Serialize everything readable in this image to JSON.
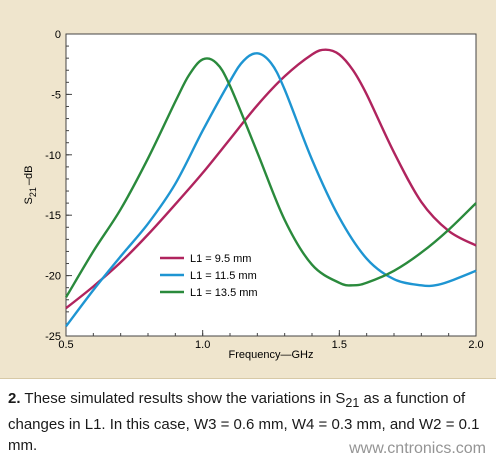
{
  "chart_data": {
    "type": "line",
    "xlabel": "Frequency—GHz",
    "ylabel_main": "S",
    "ylabel_sub": "21",
    "ylabel_unit": "–dB",
    "xlim": [
      0.5,
      2.0
    ],
    "ylim": [
      -25,
      0
    ],
    "x_ticks": [
      "0.5",
      "1.0",
      "1.5",
      "2.0"
    ],
    "y_ticks": [
      "0",
      "-5",
      "-10",
      "-15",
      "-20",
      "-25"
    ],
    "legend_position": "lower-center",
    "series": [
      {
        "name": "L1 = 9.5 mm",
        "color": "#b0245e",
        "x": [
          0.5,
          0.6,
          0.7,
          0.8,
          0.9,
          1.0,
          1.1,
          1.2,
          1.3,
          1.4,
          1.45,
          1.5,
          1.55,
          1.6,
          1.7,
          1.8,
          1.9,
          2.0
        ],
        "y": [
          -22.7,
          -20.9,
          -18.9,
          -16.6,
          -14.1,
          -11.5,
          -8.7,
          -5.9,
          -3.5,
          -1.7,
          -1.3,
          -1.7,
          -3.0,
          -5.0,
          -9.8,
          -13.9,
          -16.3,
          -17.5
        ]
      },
      {
        "name": "L1 = 11.5 mm",
        "color": "#1e95d2",
        "x": [
          0.5,
          0.6,
          0.7,
          0.8,
          0.9,
          1.0,
          1.1,
          1.15,
          1.2,
          1.25,
          1.3,
          1.4,
          1.5,
          1.6,
          1.7,
          1.8,
          1.85,
          1.9,
          2.0
        ],
        "y": [
          -24.2,
          -21.2,
          -18.4,
          -15.7,
          -12.4,
          -8.0,
          -3.9,
          -2.2,
          -1.6,
          -2.4,
          -4.6,
          -10.4,
          -15.2,
          -18.6,
          -20.3,
          -20.8,
          -20.8,
          -20.5,
          -19.6
        ]
      },
      {
        "name": "L1 = 13.5 mm",
        "color": "#2a8a3c",
        "x": [
          0.5,
          0.6,
          0.7,
          0.8,
          0.9,
          0.95,
          1.0,
          1.05,
          1.1,
          1.2,
          1.3,
          1.4,
          1.5,
          1.55,
          1.6,
          1.7,
          1.8,
          1.9,
          2.0
        ],
        "y": [
          -21.8,
          -18.0,
          -14.5,
          -10.3,
          -5.6,
          -3.4,
          -2.1,
          -2.4,
          -4.3,
          -9.8,
          -15.4,
          -19.1,
          -20.6,
          -20.8,
          -20.6,
          -19.6,
          -18.1,
          -16.2,
          -14.0
        ]
      }
    ]
  },
  "caption": {
    "number": "2.",
    "text_before": " These simulated results show the variations in S",
    "sub": "21",
    "text_after": " as a function of changes in L1. In this case, W3 = 0.6 mm, W4 = 0.3 mm, and W2 = 0.1 mm."
  },
  "watermark": "www.cntronics.com"
}
